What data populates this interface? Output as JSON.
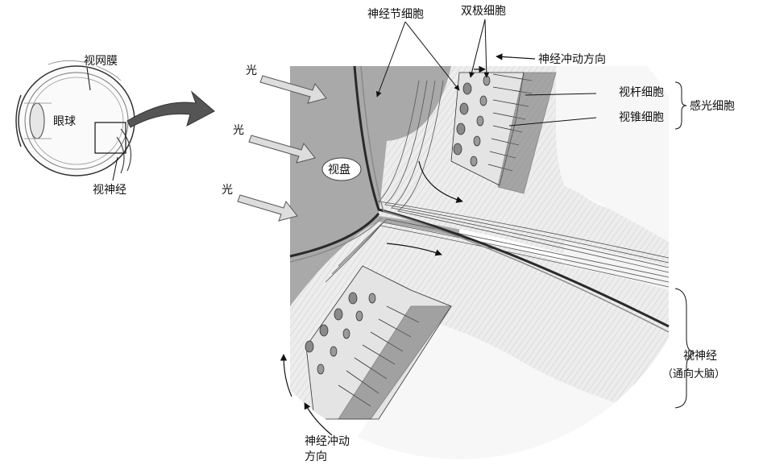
{
  "eye": {
    "eyeball": "眼球",
    "retina": "视网膜",
    "optic_nerve": "视神经"
  },
  "light": [
    "光",
    "光",
    "光"
  ],
  "optic_disc": "视盘",
  "cells": {
    "ganglion": "神经节细胞",
    "bipolar": "双极细胞",
    "rod": "视杆细胞",
    "cone": "视锥细胞",
    "photoreceptor": "感光细胞"
  },
  "impulse_direction_top": "神经冲动方向",
  "impulse_direction_bottom": [
    "神经冲动",
    "方向"
  ],
  "optic_nerve_brain": [
    "视神经",
    "（通向大脑）"
  ],
  "colors": {
    "vitreous": "#a9a9a9",
    "fiber": "#e6e6e6",
    "line": "#222222",
    "arrow_fill": "#dddddd",
    "big_arrow": "#555555"
  }
}
